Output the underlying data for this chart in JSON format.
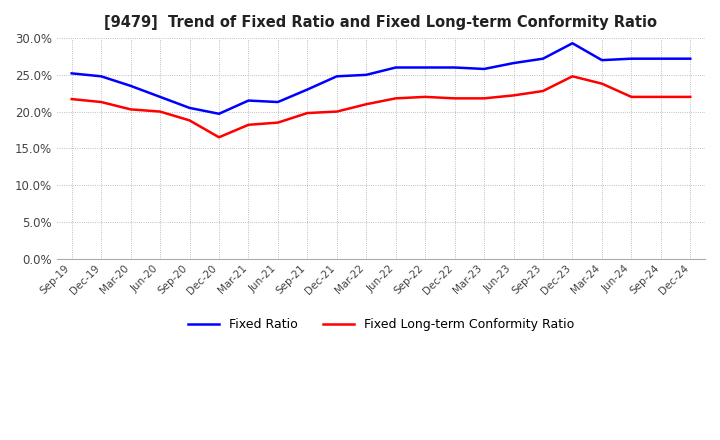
{
  "title": "[9479]  Trend of Fixed Ratio and Fixed Long-term Conformity Ratio",
  "x_labels": [
    "Sep-19",
    "Dec-19",
    "Mar-20",
    "Jun-20",
    "Sep-20",
    "Dec-20",
    "Mar-21",
    "Jun-21",
    "Sep-21",
    "Dec-21",
    "Mar-22",
    "Jun-22",
    "Sep-22",
    "Dec-22",
    "Mar-23",
    "Jun-23",
    "Sep-23",
    "Dec-23",
    "Mar-24",
    "Jun-24",
    "Sep-24",
    "Dec-24"
  ],
  "fixed_ratio": [
    25.2,
    24.8,
    23.5,
    22.0,
    20.5,
    19.7,
    21.5,
    21.3,
    23.0,
    24.8,
    25.0,
    26.0,
    26.0,
    26.0,
    25.8,
    26.6,
    27.2,
    29.3,
    27.0,
    27.2,
    27.2,
    27.2
  ],
  "fixed_lt_ratio": [
    21.7,
    21.3,
    20.3,
    20.0,
    18.8,
    16.5,
    18.2,
    18.5,
    19.8,
    20.0,
    21.0,
    21.8,
    22.0,
    21.8,
    21.8,
    22.2,
    22.8,
    24.8,
    23.8,
    22.0,
    22.0,
    22.0
  ],
  "fixed_ratio_color": "#0000ff",
  "fixed_lt_ratio_color": "#ff0000",
  "ylim": [
    0.0,
    30.0
  ],
  "yticks": [
    0.0,
    5.0,
    10.0,
    15.0,
    20.0,
    25.0,
    30.0
  ],
  "legend_fixed": "Fixed Ratio",
  "legend_lt": "Fixed Long-term Conformity Ratio",
  "background_color": "#ffffff",
  "grid_color": "#aaaaaa",
  "line_width": 1.8
}
